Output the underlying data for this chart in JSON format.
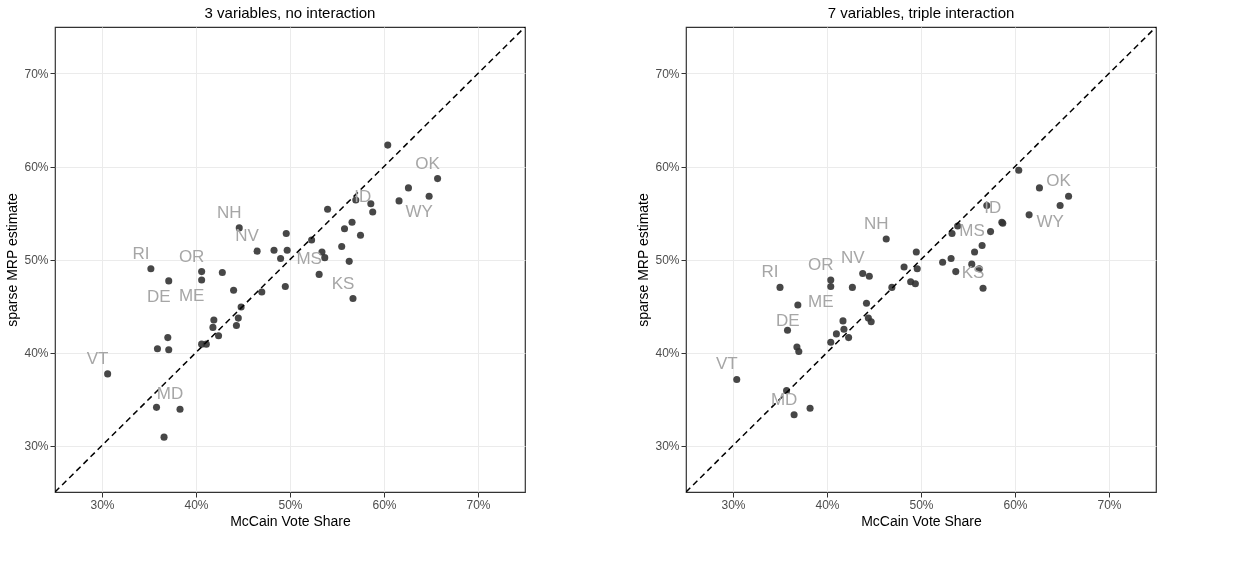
{
  "chart_data": [
    {
      "type": "scatter",
      "title": "3 variables, no interaction",
      "xlabel": "McCain Vote Share",
      "ylabel": "sparse MRP estimate",
      "xlim": [
        25,
        75
      ],
      "ylim": [
        25,
        75
      ],
      "xticks": [
        {
          "value": 30,
          "label": "30%"
        },
        {
          "value": 40,
          "label": "40%"
        },
        {
          "value": 50,
          "label": "50%"
        },
        {
          "value": 60,
          "label": "60%"
        },
        {
          "value": 70,
          "label": "70%"
        }
      ],
      "yticks": [
        {
          "value": 30,
          "label": "30%"
        },
        {
          "value": 40,
          "label": "40%"
        },
        {
          "value": 50,
          "label": "50%"
        },
        {
          "value": 60,
          "label": "60%"
        },
        {
          "value": 70,
          "label": "70%"
        }
      ],
      "grid": true,
      "series": [
        {
          "color": "#333333",
          "marker": "circle",
          "x": [
            44.6,
            49.6,
            46.5,
            48.3,
            49.7,
            49.0,
            35.2,
            37.1,
            40.6,
            40.6,
            42.8,
            49.5,
            44.0,
            47.0,
            44.8,
            41.9,
            41.8,
            44.5,
            44.3,
            42.4,
            37.0,
            35.9,
            37.1,
            40.6,
            41.1,
            30.6,
            35.8,
            38.3,
            36.6,
            60.4,
            65.7,
            62.6,
            64.8,
            61.6,
            57.0,
            54.0,
            58.6,
            58.8,
            56.6,
            55.8,
            57.5,
            52.3,
            53.4,
            53.7,
            55.5,
            56.3,
            53.1,
            56.7
          ],
          "values": [
            53.4,
            52.8,
            50.9,
            51.0,
            51.0,
            50.1,
            49.0,
            47.7,
            48.7,
            47.8,
            48.6,
            47.1,
            46.7,
            46.5,
            44.9,
            43.5,
            42.7,
            43.7,
            42.9,
            41.8,
            41.6,
            40.4,
            40.3,
            40.9,
            40.9,
            37.7,
            34.1,
            33.9,
            30.9,
            62.3,
            58.7,
            57.7,
            56.8,
            56.3,
            56.4,
            55.4,
            56.0,
            55.1,
            54.0,
            53.3,
            52.6,
            52.1,
            50.8,
            50.2,
            51.4,
            49.8,
            48.4,
            45.8
          ]
        },
        {
          "type": "line",
          "color": "#000000",
          "line_style": "dashed",
          "marker": "none",
          "x": [
            25,
            75
          ],
          "values": [
            25,
            75
          ]
        }
      ],
      "annotations": [
        {
          "text": "RI",
          "x": 35.2,
          "y": 49.0
        },
        {
          "text": "OR",
          "x": 40.6,
          "y": 48.7
        },
        {
          "text": "NV",
          "x": 46.5,
          "y": 50.9
        },
        {
          "text": "NH",
          "x": 44.6,
          "y": 53.4
        },
        {
          "text": "DE",
          "x": 37.1,
          "y": 47.7
        },
        {
          "text": "ME",
          "x": 40.6,
          "y": 47.8
        },
        {
          "text": "VT",
          "x": 30.6,
          "y": 37.7
        },
        {
          "text": "MD",
          "x": 38.3,
          "y": 33.9
        },
        {
          "text": "MS",
          "x": 53.1,
          "y": 48.4
        },
        {
          "text": "KS",
          "x": 56.7,
          "y": 45.8
        },
        {
          "text": "ID",
          "x": 58.8,
          "y": 55.1
        },
        {
          "text": "WY",
          "x": 64.8,
          "y": 56.8
        },
        {
          "text": "OK",
          "x": 65.7,
          "y": 58.7
        }
      ]
    },
    {
      "type": "scatter",
      "title": "7 variables, triple interaction",
      "xlabel": "McCain Vote Share",
      "ylabel": "sparse MRP estimate",
      "xlim": [
        25,
        75
      ],
      "ylim": [
        25,
        75
      ],
      "xticks": [
        {
          "value": 30,
          "label": "30%"
        },
        {
          "value": 40,
          "label": "40%"
        },
        {
          "value": 50,
          "label": "50%"
        },
        {
          "value": 60,
          "label": "60%"
        },
        {
          "value": 70,
          "label": "70%"
        }
      ],
      "yticks": [
        {
          "value": 30,
          "label": "30%"
        },
        {
          "value": 40,
          "label": "40%"
        },
        {
          "value": 50,
          "label": "50%"
        },
        {
          "value": 60,
          "label": "60%"
        },
        {
          "value": 70,
          "label": "70%"
        }
      ],
      "grid": true,
      "series": [
        {
          "color": "#333333",
          "marker": "circle",
          "x": [
            46.3,
            49.5,
            48.2,
            49.6,
            48.9,
            49.4,
            43.8,
            44.5,
            40.4,
            40.4,
            42.7,
            46.9,
            35.0,
            36.9,
            44.2,
            41.7,
            41.8,
            44.4,
            44.7,
            41.0,
            42.3,
            40.4,
            35.8,
            36.8,
            37.0,
            30.4,
            35.7,
            38.2,
            36.5,
            60.4,
            62.6,
            65.7,
            64.8,
            61.5,
            57.0,
            58.7,
            57.4,
            53.9,
            53.3,
            52.3,
            53.2,
            53.7,
            55.7,
            56.5,
            55.4,
            56.2,
            56.6,
            58.6
          ],
          "values": [
            52.2,
            50.8,
            49.2,
            49.0,
            47.6,
            47.4,
            48.5,
            48.2,
            47.8,
            47.1,
            47.0,
            47.0,
            47.0,
            45.1,
            45.3,
            43.4,
            42.5,
            43.7,
            43.3,
            42.0,
            41.6,
            41.1,
            42.4,
            40.6,
            40.1,
            37.1,
            35.9,
            34.0,
            33.3,
            59.6,
            57.7,
            56.8,
            55.8,
            54.8,
            55.8,
            53.9,
            53.0,
            53.6,
            52.8,
            49.7,
            50.1,
            48.7,
            50.8,
            51.5,
            49.5,
            49.0,
            46.9,
            54.0
          ]
        },
        {
          "type": "line",
          "color": "#000000",
          "line_style": "dashed",
          "marker": "none",
          "x": [
            25,
            75
          ],
          "values": [
            25,
            75
          ]
        }
      ],
      "annotations": [
        {
          "text": "RI",
          "x": 35.0,
          "y": 47.0
        },
        {
          "text": "OR",
          "x": 40.4,
          "y": 47.8
        },
        {
          "text": "NV",
          "x": 43.8,
          "y": 48.5
        },
        {
          "text": "NH",
          "x": 46.3,
          "y": 52.2
        },
        {
          "text": "DE",
          "x": 36.9,
          "y": 45.1
        },
        {
          "text": "ME",
          "x": 40.4,
          "y": 47.1
        },
        {
          "text": "VT",
          "x": 30.4,
          "y": 37.1
        },
        {
          "text": "MD",
          "x": 36.5,
          "y": 33.3
        },
        {
          "text": "MS",
          "x": 56.5,
          "y": 51.5
        },
        {
          "text": "KS",
          "x": 56.6,
          "y": 46.9
        },
        {
          "text": "ID",
          "x": 58.7,
          "y": 53.9
        },
        {
          "text": "WY",
          "x": 64.8,
          "y": 55.8
        },
        {
          "text": "OK",
          "x": 65.7,
          "y": 56.8
        }
      ]
    }
  ]
}
